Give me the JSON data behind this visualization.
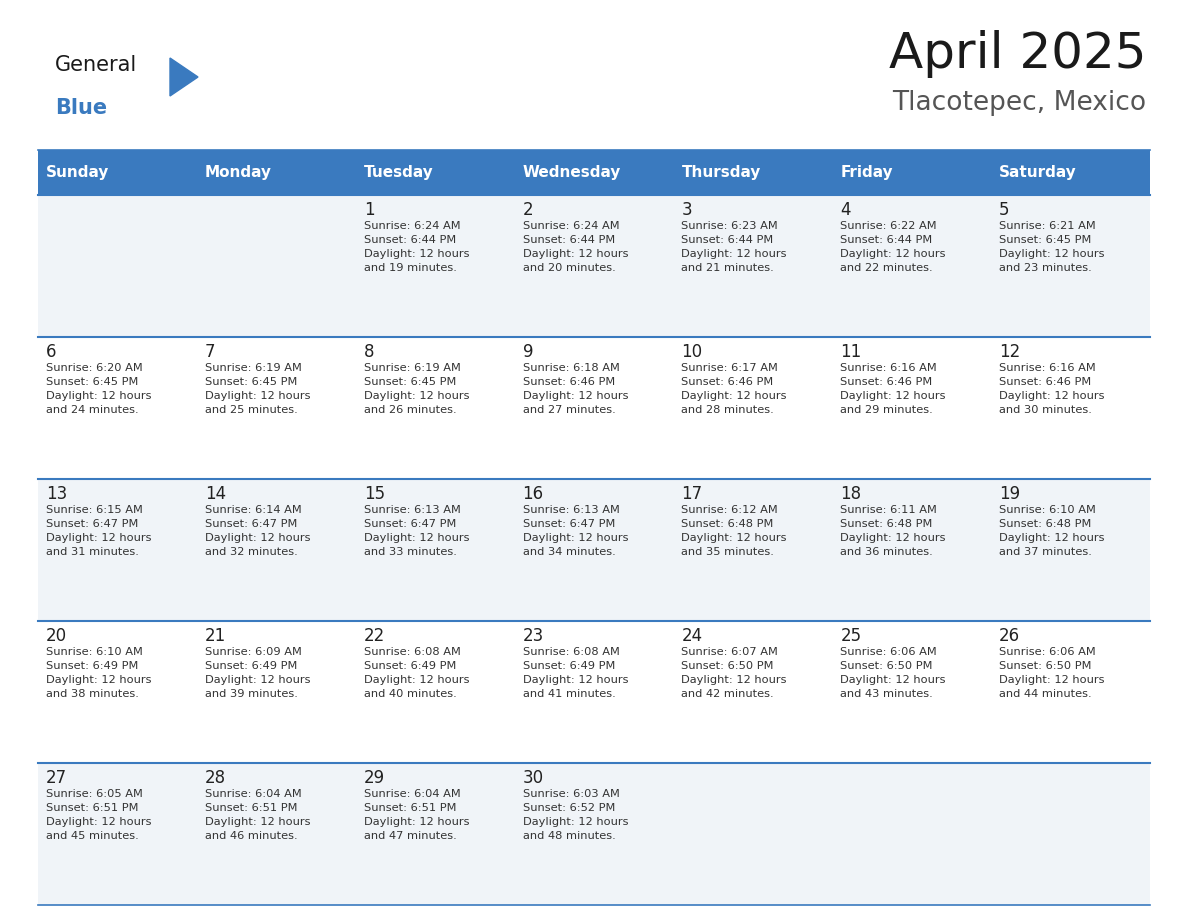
{
  "title": "April 2025",
  "subtitle": "Tlacotepec, Mexico",
  "days_of_week": [
    "Sunday",
    "Monday",
    "Tuesday",
    "Wednesday",
    "Thursday",
    "Friday",
    "Saturday"
  ],
  "header_bg": "#3a7abf",
  "header_text": "#ffffff",
  "row_bg_even": "#f0f4f8",
  "row_bg_odd": "#ffffff",
  "cell_text_color": "#333333",
  "day_num_color": "#222222",
  "separator_color": "#3a7abf",
  "bg_color": "#ffffff",
  "title_color": "#1a1a1a",
  "subtitle_color": "#555555",
  "logo_general_color": "#1a1a1a",
  "logo_blue_color": "#3a7abf",
  "weeks": [
    [
      {
        "day": null,
        "info": null
      },
      {
        "day": null,
        "info": null
      },
      {
        "day": 1,
        "info": "Sunrise: 6:24 AM\nSunset: 6:44 PM\nDaylight: 12 hours\nand 19 minutes."
      },
      {
        "day": 2,
        "info": "Sunrise: 6:24 AM\nSunset: 6:44 PM\nDaylight: 12 hours\nand 20 minutes."
      },
      {
        "day": 3,
        "info": "Sunrise: 6:23 AM\nSunset: 6:44 PM\nDaylight: 12 hours\nand 21 minutes."
      },
      {
        "day": 4,
        "info": "Sunrise: 6:22 AM\nSunset: 6:44 PM\nDaylight: 12 hours\nand 22 minutes."
      },
      {
        "day": 5,
        "info": "Sunrise: 6:21 AM\nSunset: 6:45 PM\nDaylight: 12 hours\nand 23 minutes."
      }
    ],
    [
      {
        "day": 6,
        "info": "Sunrise: 6:20 AM\nSunset: 6:45 PM\nDaylight: 12 hours\nand 24 minutes."
      },
      {
        "day": 7,
        "info": "Sunrise: 6:19 AM\nSunset: 6:45 PM\nDaylight: 12 hours\nand 25 minutes."
      },
      {
        "day": 8,
        "info": "Sunrise: 6:19 AM\nSunset: 6:45 PM\nDaylight: 12 hours\nand 26 minutes."
      },
      {
        "day": 9,
        "info": "Sunrise: 6:18 AM\nSunset: 6:46 PM\nDaylight: 12 hours\nand 27 minutes."
      },
      {
        "day": 10,
        "info": "Sunrise: 6:17 AM\nSunset: 6:46 PM\nDaylight: 12 hours\nand 28 minutes."
      },
      {
        "day": 11,
        "info": "Sunrise: 6:16 AM\nSunset: 6:46 PM\nDaylight: 12 hours\nand 29 minutes."
      },
      {
        "day": 12,
        "info": "Sunrise: 6:16 AM\nSunset: 6:46 PM\nDaylight: 12 hours\nand 30 minutes."
      }
    ],
    [
      {
        "day": 13,
        "info": "Sunrise: 6:15 AM\nSunset: 6:47 PM\nDaylight: 12 hours\nand 31 minutes."
      },
      {
        "day": 14,
        "info": "Sunrise: 6:14 AM\nSunset: 6:47 PM\nDaylight: 12 hours\nand 32 minutes."
      },
      {
        "day": 15,
        "info": "Sunrise: 6:13 AM\nSunset: 6:47 PM\nDaylight: 12 hours\nand 33 minutes."
      },
      {
        "day": 16,
        "info": "Sunrise: 6:13 AM\nSunset: 6:47 PM\nDaylight: 12 hours\nand 34 minutes."
      },
      {
        "day": 17,
        "info": "Sunrise: 6:12 AM\nSunset: 6:48 PM\nDaylight: 12 hours\nand 35 minutes."
      },
      {
        "day": 18,
        "info": "Sunrise: 6:11 AM\nSunset: 6:48 PM\nDaylight: 12 hours\nand 36 minutes."
      },
      {
        "day": 19,
        "info": "Sunrise: 6:10 AM\nSunset: 6:48 PM\nDaylight: 12 hours\nand 37 minutes."
      }
    ],
    [
      {
        "day": 20,
        "info": "Sunrise: 6:10 AM\nSunset: 6:49 PM\nDaylight: 12 hours\nand 38 minutes."
      },
      {
        "day": 21,
        "info": "Sunrise: 6:09 AM\nSunset: 6:49 PM\nDaylight: 12 hours\nand 39 minutes."
      },
      {
        "day": 22,
        "info": "Sunrise: 6:08 AM\nSunset: 6:49 PM\nDaylight: 12 hours\nand 40 minutes."
      },
      {
        "day": 23,
        "info": "Sunrise: 6:08 AM\nSunset: 6:49 PM\nDaylight: 12 hours\nand 41 minutes."
      },
      {
        "day": 24,
        "info": "Sunrise: 6:07 AM\nSunset: 6:50 PM\nDaylight: 12 hours\nand 42 minutes."
      },
      {
        "day": 25,
        "info": "Sunrise: 6:06 AM\nSunset: 6:50 PM\nDaylight: 12 hours\nand 43 minutes."
      },
      {
        "day": 26,
        "info": "Sunrise: 6:06 AM\nSunset: 6:50 PM\nDaylight: 12 hours\nand 44 minutes."
      }
    ],
    [
      {
        "day": 27,
        "info": "Sunrise: 6:05 AM\nSunset: 6:51 PM\nDaylight: 12 hours\nand 45 minutes."
      },
      {
        "day": 28,
        "info": "Sunrise: 6:04 AM\nSunset: 6:51 PM\nDaylight: 12 hours\nand 46 minutes."
      },
      {
        "day": 29,
        "info": "Sunrise: 6:04 AM\nSunset: 6:51 PM\nDaylight: 12 hours\nand 47 minutes."
      },
      {
        "day": 30,
        "info": "Sunrise: 6:03 AM\nSunset: 6:52 PM\nDaylight: 12 hours\nand 48 minutes."
      },
      {
        "day": null,
        "info": null
      },
      {
        "day": null,
        "info": null
      },
      {
        "day": null,
        "info": null
      }
    ]
  ]
}
